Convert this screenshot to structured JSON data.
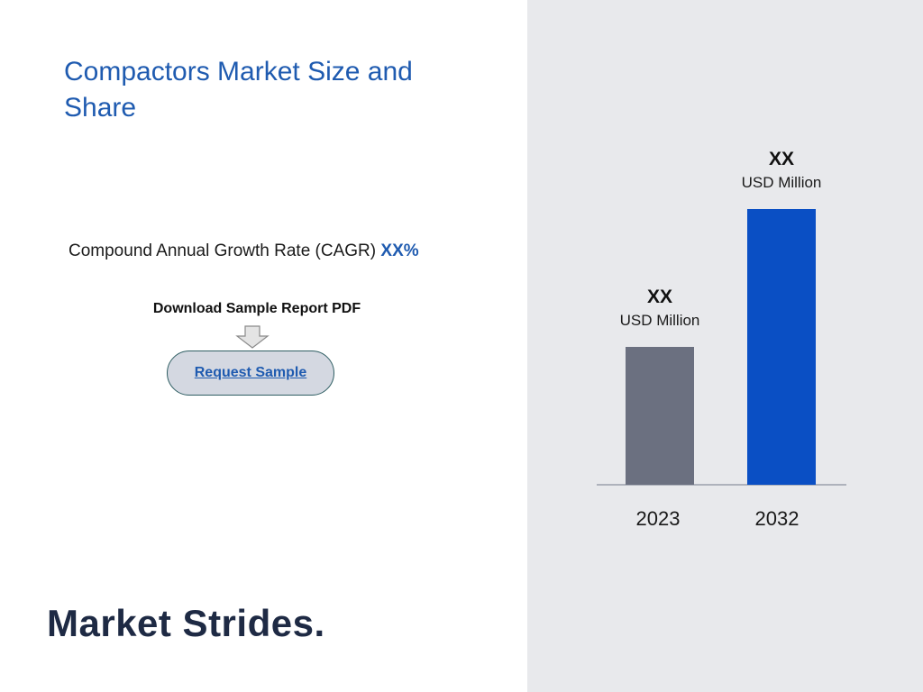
{
  "header": {
    "title": "Compactors Market Size and Share"
  },
  "cagr": {
    "label": "Compound Annual Growth Rate (CAGR)",
    "value": "XX%"
  },
  "download": {
    "label": "Download Sample Report PDF",
    "button_label": "Request Sample"
  },
  "logo": {
    "text": "Market Strides",
    "dot": "."
  },
  "colors": {
    "title": "#1f5bb0",
    "bar_2023": "#6b7080",
    "bar_2032": "#0a4fc4",
    "right_panel_bg": "#e8e9ec"
  },
  "chart_data": {
    "type": "bar",
    "categories": [
      "2023",
      "2032"
    ],
    "values": [
      40,
      80
    ],
    "value_labels": [
      "XX",
      "XX"
    ],
    "unit_labels": [
      "USD Million",
      "USD Million"
    ],
    "ylim": [
      0,
      80
    ],
    "grid": false,
    "legend": "none"
  }
}
